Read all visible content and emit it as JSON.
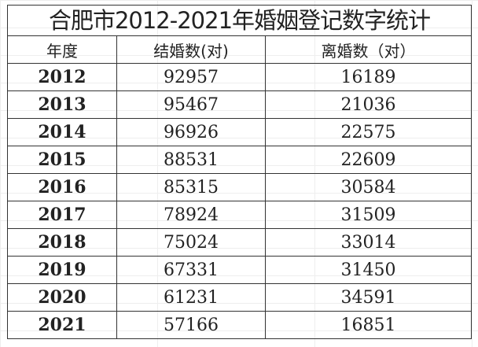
{
  "title": "合肥市2012-2021年婚姻登记数字统计",
  "headers": [
    "年度",
    "结婚数(对)",
    "离婚数（对）"
  ],
  "rows": [
    [
      "2012",
      "92957",
      "16189"
    ],
    [
      "2013",
      "95467",
      "21036"
    ],
    [
      "2014",
      "96926",
      "22575"
    ],
    [
      "2015",
      "88531",
      "22609"
    ],
    [
      "2016",
      "85315",
      "30584"
    ],
    [
      "2017",
      "78924",
      "31509"
    ],
    [
      "2018",
      "75024",
      "33014"
    ],
    [
      "2019",
      "67331",
      "31450"
    ],
    [
      "2020",
      "61231",
      "34591"
    ],
    [
      "2021",
      "57166",
      "16851"
    ]
  ]
}
